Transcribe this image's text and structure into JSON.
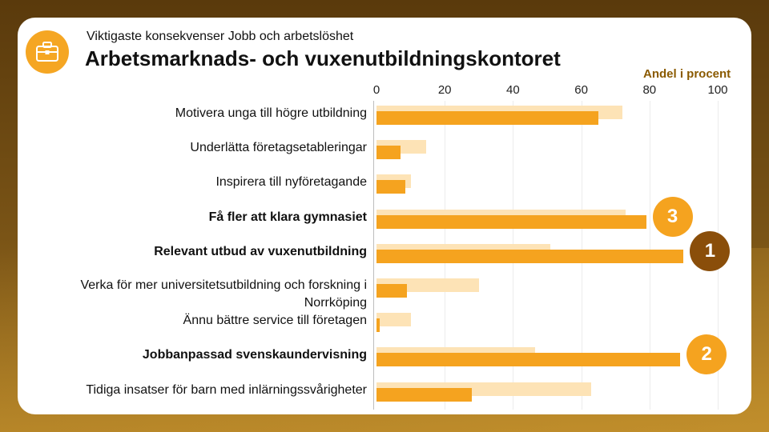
{
  "header": {
    "subtitle": "Viktigaste konsekvenser Jobb och arbetslöshet",
    "title": "Arbetsmarknads- och vuxenutbildningskontoret",
    "icon": "briefcase-icon"
  },
  "colors": {
    "accent": "#f5a623",
    "bar_dark": "#f5a31f",
    "bar_light": "#fde3b6",
    "badge_orange": "#f5a31f",
    "badge_brown": "#8a4e0a",
    "unit_text": "#8a5a00"
  },
  "chart_data": {
    "type": "bar",
    "orientation": "horizontal",
    "title": "Arbetsmarknads- och vuxenutbildningskontoret",
    "xlabel": "Andel i procent",
    "xlim": [
      0,
      100
    ],
    "xticks": [
      "0",
      "20",
      "40",
      "60",
      "80",
      "100"
    ],
    "categories": [
      "Motivera unga till högre utbildning",
      "Underlätta företagsetableringar",
      "Inspirera till nyföretagande",
      "Få fler att klara gymnasiet",
      "Relevant utbud av vuxenutbildning",
      "Verka för mer universitetsutbildning och forskning i Norrköping",
      "Ännu bättre service till företagen",
      "Jobbanpassad svenskaundervisning",
      "Tidiga insatser för barn med inlärningssvårigheter"
    ],
    "bold": [
      false,
      false,
      false,
      true,
      true,
      false,
      false,
      true,
      false
    ],
    "series": [
      {
        "name": "light",
        "values": [
          72,
          14.5,
          10,
          73,
          51,
          30,
          10,
          46.5,
          63
        ]
      },
      {
        "name": "dark",
        "values": [
          65,
          7,
          8.5,
          79,
          90,
          9,
          1,
          89,
          28
        ]
      }
    ],
    "annotations": [
      {
        "category_index": 3,
        "label": "3",
        "color": "#f5a31f"
      },
      {
        "category_index": 4,
        "label": "1",
        "color": "#8a4e0a"
      },
      {
        "category_index": 7,
        "label": "2",
        "color": "#f5a31f"
      }
    ]
  }
}
